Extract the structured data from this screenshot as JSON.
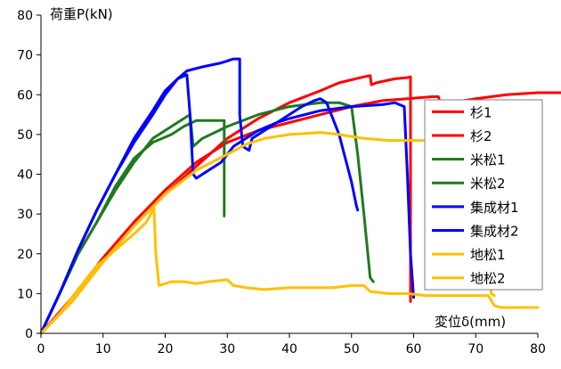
{
  "chart_data": {
    "type": "line",
    "ylabel": "荷重P(kN)",
    "xlabel": "変位δ(mm)",
    "xlim": [
      0,
      80
    ],
    "ylim": [
      0,
      80
    ],
    "xticks": [
      0,
      10,
      20,
      30,
      40,
      50,
      60,
      70,
      80
    ],
    "yticks": [
      0,
      10,
      20,
      30,
      40,
      50,
      60,
      70,
      80
    ],
    "grid": false,
    "legend_position": "right",
    "series": [
      {
        "name": "杉1",
        "color": "#ff0000",
        "points": [
          [
            0,
            0
          ],
          [
            5,
            8
          ],
          [
            10,
            18
          ],
          [
            15,
            27
          ],
          [
            20,
            35
          ],
          [
            25,
            42
          ],
          [
            30,
            49
          ],
          [
            35,
            54
          ],
          [
            40,
            58
          ],
          [
            45,
            61
          ],
          [
            48,
            63
          ],
          [
            52,
            64.5
          ],
          [
            53,
            64.8
          ],
          [
            53.2,
            62.5
          ],
          [
            54,
            63
          ],
          [
            57,
            64
          ],
          [
            59,
            64.3
          ],
          [
            59.5,
            64.5
          ],
          [
            59.5,
            63
          ],
          [
            59.5,
            10
          ],
          [
            59.5,
            8
          ]
        ]
      },
      {
        "name": "杉2",
        "color": "#ff0000",
        "points": [
          [
            0,
            0
          ],
          [
            5,
            9
          ],
          [
            10,
            19
          ],
          [
            15,
            28
          ],
          [
            20,
            36
          ],
          [
            25,
            43
          ],
          [
            30,
            48
          ],
          [
            35,
            51
          ],
          [
            40,
            53
          ],
          [
            45,
            55
          ],
          [
            50,
            57
          ],
          [
            55,
            58.5
          ],
          [
            59,
            59
          ],
          [
            63,
            59.5
          ],
          [
            64,
            59.5
          ],
          [
            64.5,
            56.5
          ],
          [
            66,
            58
          ],
          [
            70,
            59
          ],
          [
            75,
            60
          ],
          [
            80,
            60.5
          ],
          [
            84,
            60.5
          ]
        ]
      },
      {
        "name": "米松1",
        "color": "#1f7a1f",
        "points": [
          [
            0,
            0
          ],
          [
            3,
            10
          ],
          [
            6,
            20
          ],
          [
            9,
            28
          ],
          [
            12,
            37
          ],
          [
            15,
            44
          ],
          [
            18,
            48
          ],
          [
            21,
            50
          ],
          [
            23,
            52
          ],
          [
            25,
            53.5
          ],
          [
            27,
            53.5
          ],
          [
            29,
            53.5
          ],
          [
            29.5,
            53.5
          ],
          [
            29.5,
            30
          ],
          [
            29.5,
            29.5
          ]
        ]
      },
      {
        "name": "米松2",
        "color": "#1f7a1f",
        "points": [
          [
            0,
            0
          ],
          [
            3,
            10
          ],
          [
            6,
            20
          ],
          [
            9,
            28
          ],
          [
            12,
            36
          ],
          [
            15,
            43
          ],
          [
            18,
            49
          ],
          [
            21,
            52
          ],
          [
            23,
            54
          ],
          [
            24,
            55
          ],
          [
            24.5,
            47
          ],
          [
            26,
            49
          ],
          [
            30,
            52
          ],
          [
            35,
            55
          ],
          [
            40,
            57
          ],
          [
            45,
            58
          ],
          [
            48,
            58
          ],
          [
            50,
            57
          ],
          [
            51,
            45
          ],
          [
            52,
            30
          ],
          [
            53,
            14
          ],
          [
            53.5,
            13
          ]
        ]
      },
      {
        "name": "集成材1",
        "color": "#0000ff",
        "points": [
          [
            0,
            0
          ],
          [
            3,
            10
          ],
          [
            6,
            21
          ],
          [
            9,
            31
          ],
          [
            12,
            40
          ],
          [
            15,
            49
          ],
          [
            18,
            56
          ],
          [
            20,
            61
          ],
          [
            22,
            64
          ],
          [
            23.5,
            66
          ],
          [
            26,
            67
          ],
          [
            29,
            68
          ],
          [
            31,
            69
          ],
          [
            32,
            69
          ],
          [
            32,
            55
          ],
          [
            32.5,
            47
          ],
          [
            33.5,
            46
          ],
          [
            34,
            49
          ],
          [
            36,
            51
          ],
          [
            39,
            54
          ],
          [
            42,
            57
          ],
          [
            44,
            58.5
          ],
          [
            45,
            59
          ],
          [
            46,
            58
          ],
          [
            48,
            50
          ],
          [
            50,
            38
          ],
          [
            50.8,
            32
          ],
          [
            51,
            31
          ]
        ]
      },
      {
        "name": "集成材2",
        "color": "#0000ff",
        "points": [
          [
            0,
            0
          ],
          [
            3,
            10
          ],
          [
            6,
            21
          ],
          [
            9,
            31
          ],
          [
            12,
            40
          ],
          [
            15,
            48
          ],
          [
            18,
            55
          ],
          [
            20,
            60
          ],
          [
            22,
            64
          ],
          [
            23.5,
            65
          ],
          [
            24,
            55
          ],
          [
            24.5,
            40
          ],
          [
            25,
            39
          ],
          [
            27,
            41
          ],
          [
            29,
            43
          ],
          [
            30,
            45
          ],
          [
            31,
            47
          ],
          [
            33,
            49
          ],
          [
            35,
            51
          ],
          [
            38,
            53
          ],
          [
            40,
            54
          ],
          [
            45,
            56
          ],
          [
            50,
            57
          ],
          [
            55,
            57.5
          ],
          [
            57,
            58
          ],
          [
            58.5,
            57
          ],
          [
            59,
            40
          ],
          [
            59.5,
            20
          ],
          [
            60,
            9
          ]
        ]
      },
      {
        "name": "地松1",
        "color": "#ffc000",
        "points": [
          [
            0,
            0
          ],
          [
            5,
            8
          ],
          [
            10,
            18
          ],
          [
            15,
            27
          ],
          [
            20,
            35
          ],
          [
            25,
            41
          ],
          [
            30,
            45
          ],
          [
            33,
            47.5
          ],
          [
            36,
            49
          ],
          [
            40,
            50
          ],
          [
            45,
            50.5
          ],
          [
            48,
            50
          ],
          [
            52,
            49
          ],
          [
            56,
            48.5
          ],
          [
            59,
            48.5
          ],
          [
            62,
            48.5
          ],
          [
            66,
            48.5
          ],
          [
            69,
            48.5
          ],
          [
            70,
            48.5
          ],
          [
            71,
            40
          ],
          [
            72,
            25
          ],
          [
            72.5,
            10
          ],
          [
            73,
            9.5
          ]
        ]
      },
      {
        "name": "地松2",
        "color": "#ffc000",
        "points": [
          [
            0,
            0
          ],
          [
            3,
            5
          ],
          [
            6,
            11
          ],
          [
            9,
            17
          ],
          [
            12,
            21
          ],
          [
            15,
            25
          ],
          [
            17,
            28
          ],
          [
            18.2,
            31.5
          ],
          [
            18.5,
            20
          ],
          [
            19,
            12
          ],
          [
            21,
            13
          ],
          [
            23,
            13
          ],
          [
            25,
            12.5
          ],
          [
            27,
            13
          ],
          [
            30,
            13.5
          ],
          [
            31,
            12
          ],
          [
            33,
            11.5
          ],
          [
            36,
            11
          ],
          [
            40,
            11.5
          ],
          [
            44,
            11.5
          ],
          [
            47,
            11.5
          ],
          [
            50,
            12
          ],
          [
            52,
            12
          ],
          [
            53,
            10.5
          ],
          [
            56,
            10
          ],
          [
            59,
            10
          ],
          [
            62,
            9.5
          ],
          [
            65,
            9.5
          ],
          [
            68,
            9.5
          ],
          [
            71,
            9.5
          ],
          [
            72,
            9.5
          ],
          [
            73,
            7
          ],
          [
            74,
            6.5
          ],
          [
            76,
            6.5
          ],
          [
            78,
            6.5
          ],
          [
            80,
            6.5
          ]
        ]
      }
    ]
  }
}
